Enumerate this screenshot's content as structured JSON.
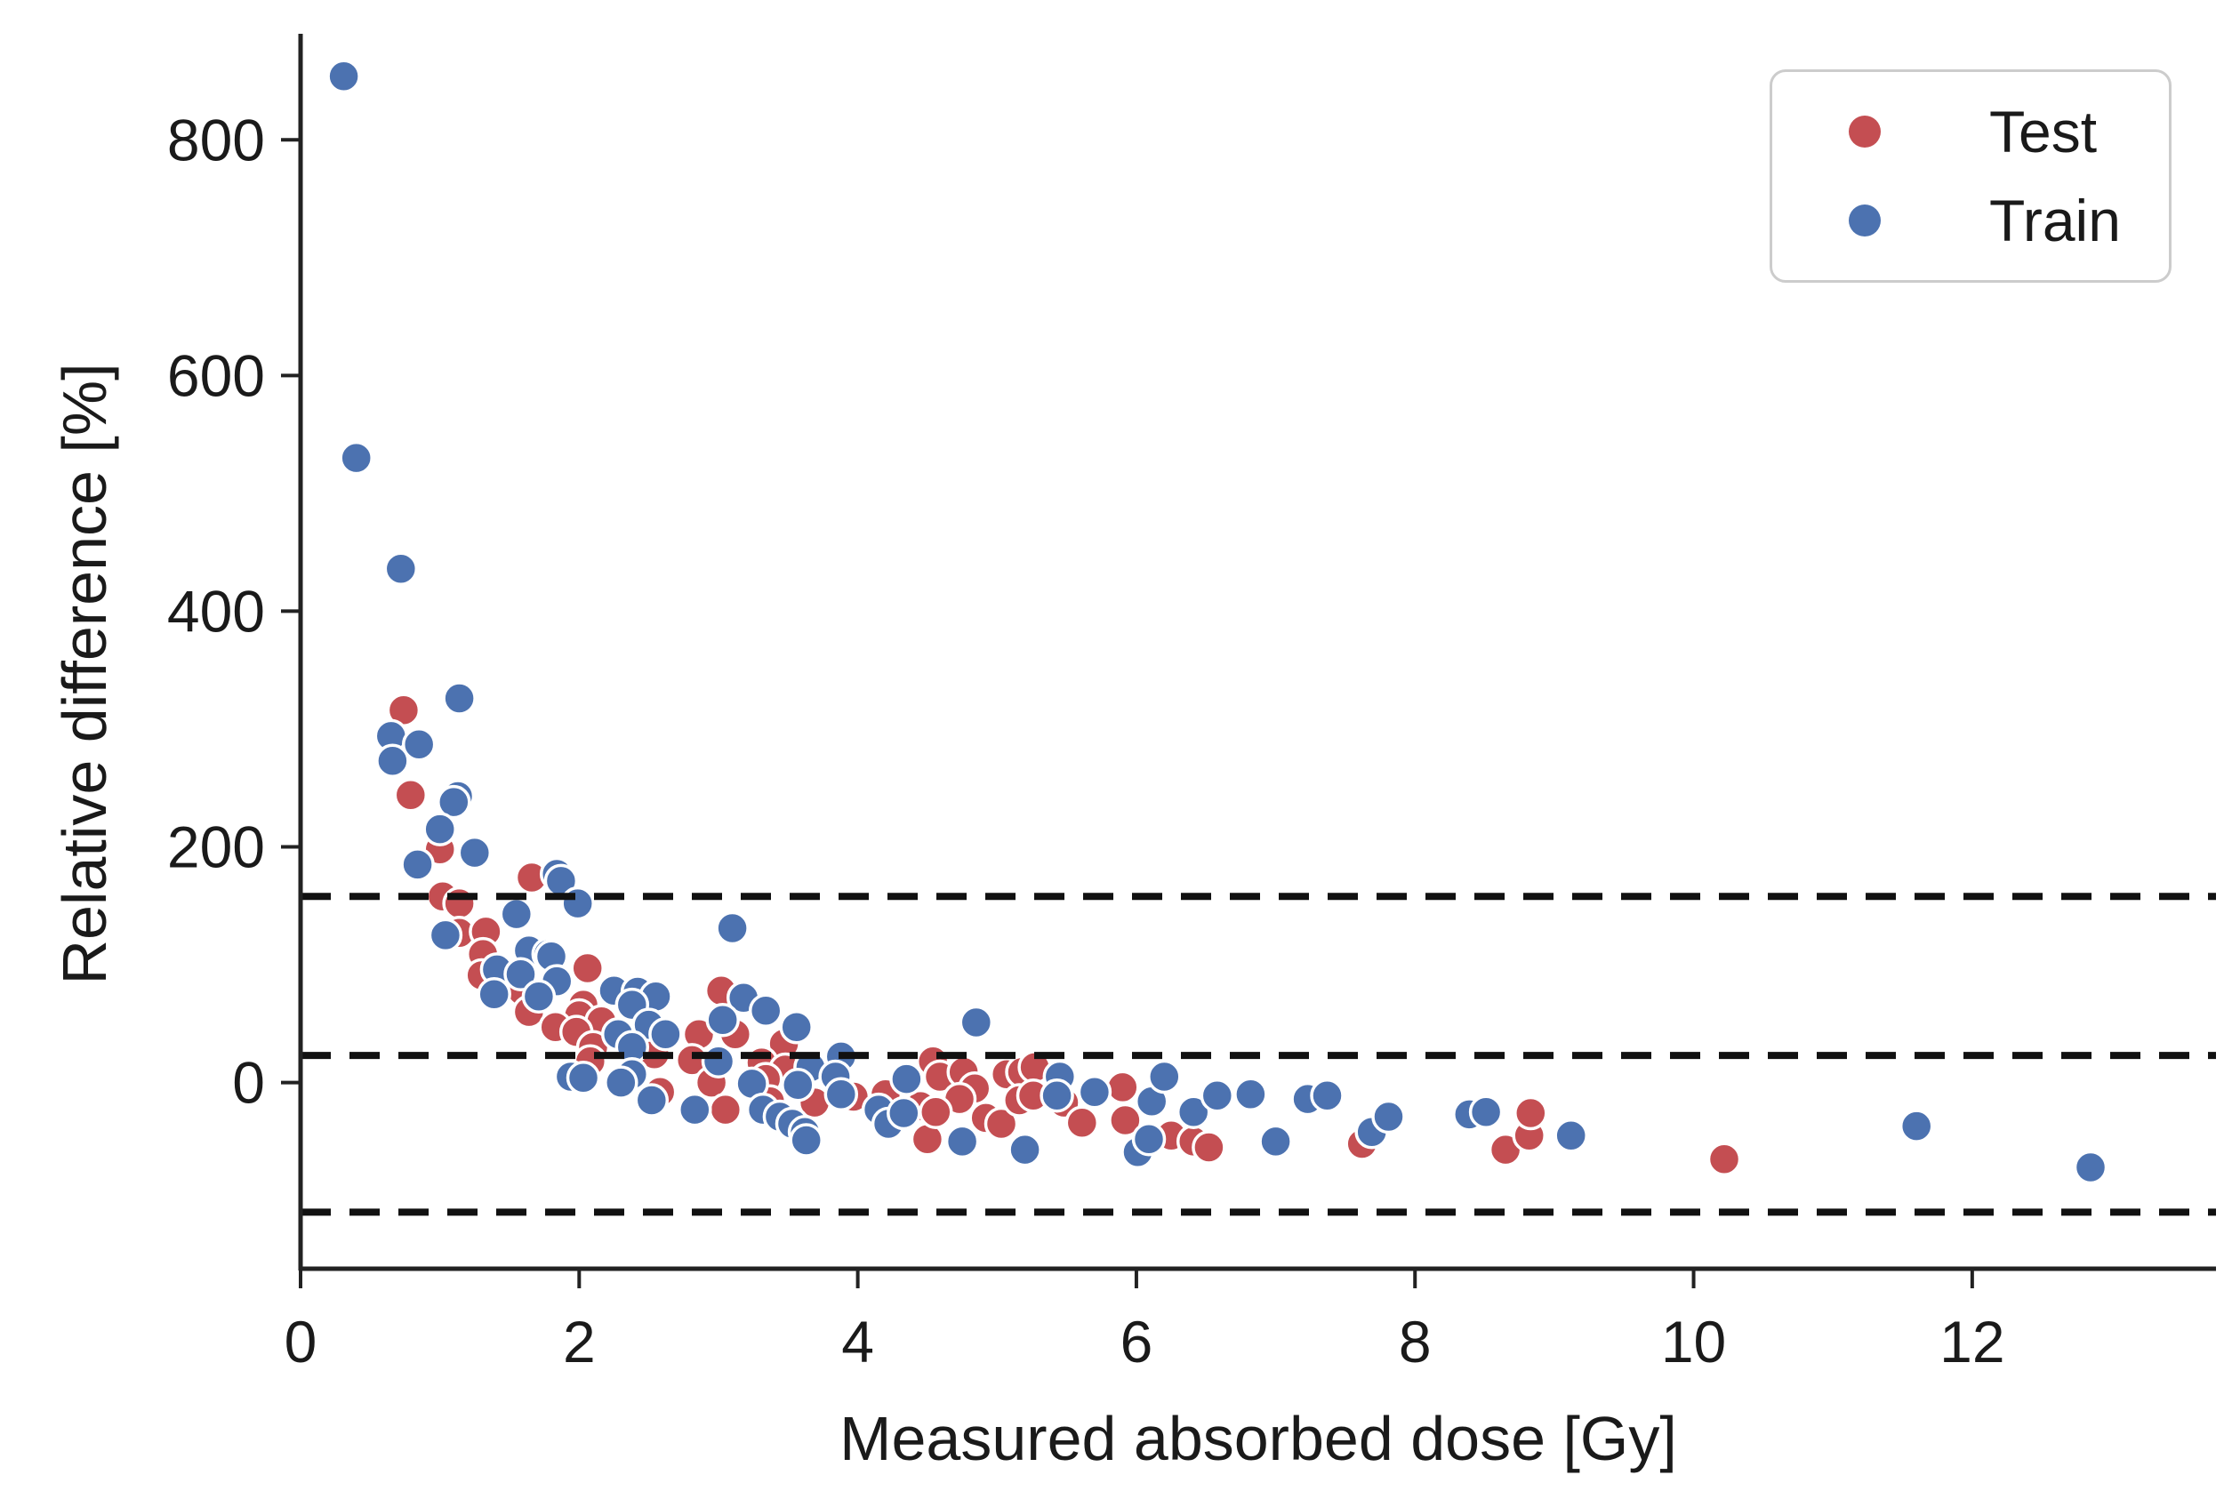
{
  "accent_colors": {
    "test_red": "#C44E52",
    "train_blue": "#4C72B0",
    "line_black": "#111111",
    "axis_color": "#222222",
    "text_color": "#1a1a1a",
    "legend_border": "#cccccc"
  },
  "legend": {
    "entries": [
      {
        "label": "Test",
        "color": "#C44E52"
      },
      {
        "label": "Train",
        "color": "#4C72B0"
      }
    ]
  },
  "chart_data": {
    "type": "scatter",
    "title": "",
    "xlabel": "Measured absorbed dose [Gy]",
    "ylabel": "Relative difference [%]",
    "xlim": [
      0,
      13.75
    ],
    "ylim": [
      -158,
      890
    ],
    "x_ticks": [
      0,
      2,
      4,
      6,
      8,
      10,
      12
    ],
    "y_ticks": [
      0,
      200,
      400,
      600,
      800
    ],
    "grid": false,
    "legend_position": "upper right",
    "reference_lines": {
      "style": "dashed",
      "color": "#111111",
      "values": [
        158,
        23,
        -110
      ]
    },
    "series": [
      {
        "name": "Test",
        "color": "#C44E52",
        "points": [
          [
            0.74,
            316
          ],
          [
            0.79,
            244
          ],
          [
            1.0,
            198
          ],
          [
            1.02,
            158
          ],
          [
            1.14,
            152
          ],
          [
            1.66,
            174
          ],
          [
            1.14,
            127
          ],
          [
            1.33,
            128
          ],
          [
            1.31,
            109
          ],
          [
            1.3,
            91
          ],
          [
            2.06,
            97
          ],
          [
            1.59,
            78
          ],
          [
            2.03,
            66
          ],
          [
            1.64,
            60
          ],
          [
            2.0,
            57
          ],
          [
            2.16,
            52
          ],
          [
            1.83,
            47
          ],
          [
            1.98,
            43
          ],
          [
            2.1,
            30
          ],
          [
            2.08,
            18
          ],
          [
            3.02,
            78
          ],
          [
            2.86,
            41
          ],
          [
            3.12,
            41
          ],
          [
            3.47,
            33
          ],
          [
            2.54,
            24
          ],
          [
            2.81,
            19
          ],
          [
            3.31,
            17
          ],
          [
            3.48,
            11
          ],
          [
            2.58,
            -8
          ],
          [
            2.95,
            0
          ],
          [
            3.34,
            3
          ],
          [
            3.37,
            -16
          ],
          [
            3.69,
            -17
          ],
          [
            3.05,
            -23
          ],
          [
            3.97,
            -12
          ],
          [
            4.2,
            -10
          ],
          [
            4.45,
            -20
          ],
          [
            4.5,
            -48
          ],
          [
            4.54,
            18
          ],
          [
            4.59,
            5
          ],
          [
            4.76,
            9
          ],
          [
            4.84,
            -5
          ],
          [
            5.07,
            7
          ],
          [
            5.18,
            9
          ],
          [
            5.27,
            13
          ],
          [
            4.73,
            -14
          ],
          [
            4.92,
            -30
          ],
          [
            5.03,
            -35
          ],
          [
            5.16,
            -15
          ],
          [
            5.26,
            -11
          ],
          [
            5.48,
            -17
          ],
          [
            5.61,
            -34
          ],
          [
            5.9,
            -4
          ],
          [
            5.92,
            -32
          ],
          [
            6.25,
            -45
          ],
          [
            6.41,
            -50
          ],
          [
            6.52,
            -55
          ],
          [
            4.56,
            -25
          ],
          [
            7.62,
            -52
          ],
          [
            8.65,
            -57
          ],
          [
            8.82,
            -45
          ],
          [
            8.83,
            -26
          ],
          [
            10.22,
            -65
          ]
        ]
      },
      {
        "name": "Train",
        "color": "#4C72B0",
        "points": [
          [
            0.31,
            854
          ],
          [
            0.4,
            530
          ],
          [
            0.72,
            436
          ],
          [
            1.14,
            326
          ],
          [
            0.65,
            294
          ],
          [
            0.85,
            287
          ],
          [
            0.66,
            273
          ],
          [
            1.13,
            243
          ],
          [
            1.1,
            238
          ],
          [
            1.0,
            215
          ],
          [
            1.25,
            195
          ],
          [
            0.84,
            185
          ],
          [
            1.84,
            177
          ],
          [
            1.87,
            171
          ],
          [
            1.99,
            152
          ],
          [
            1.55,
            143
          ],
          [
            1.04,
            125
          ],
          [
            1.64,
            112
          ],
          [
            1.78,
            109
          ],
          [
            1.8,
            107
          ],
          [
            1.41,
            96
          ],
          [
            1.58,
            92
          ],
          [
            1.84,
            86
          ],
          [
            2.25,
            78
          ],
          [
            1.39,
            75
          ],
          [
            1.71,
            73
          ],
          [
            2.42,
            77
          ],
          [
            2.55,
            73
          ],
          [
            2.38,
            66
          ],
          [
            3.18,
            72
          ],
          [
            3.34,
            61
          ],
          [
            3.56,
            47
          ],
          [
            2.5,
            49
          ],
          [
            3.03,
            53
          ],
          [
            2.62,
            41
          ],
          [
            2.28,
            41
          ],
          [
            3.1,
            131
          ],
          [
            4.85,
            51
          ],
          [
            2.38,
            30
          ],
          [
            3.0,
            18
          ],
          [
            3.66,
            13
          ],
          [
            3.88,
            22
          ],
          [
            2.38,
            7
          ],
          [
            1.94,
            5
          ],
          [
            2.03,
            4
          ],
          [
            2.3,
            0
          ],
          [
            3.24,
            -1
          ],
          [
            3.84,
            5
          ],
          [
            3.57,
            -2
          ],
          [
            3.88,
            -10
          ],
          [
            2.52,
            -15
          ],
          [
            2.83,
            -23
          ],
          [
            3.32,
            -23
          ],
          [
            4.15,
            -23
          ],
          [
            4.35,
            3
          ],
          [
            3.44,
            -29
          ],
          [
            3.53,
            -35
          ],
          [
            3.62,
            -42
          ],
          [
            3.63,
            -49
          ],
          [
            4.22,
            -35
          ],
          [
            4.33,
            -26
          ],
          [
            4.75,
            -50
          ],
          [
            5.2,
            -57
          ],
          [
            5.45,
            5
          ],
          [
            5.43,
            -11
          ],
          [
            5.7,
            -8
          ],
          [
            6.01,
            -59
          ],
          [
            6.09,
            -48
          ],
          [
            6.11,
            -16
          ],
          [
            6.2,
            5
          ],
          [
            6.41,
            -25
          ],
          [
            6.58,
            -11
          ],
          [
            6.82,
            -10
          ],
          [
            7.0,
            -50
          ],
          [
            7.23,
            -14
          ],
          [
            7.37,
            -11
          ],
          [
            7.69,
            -42
          ],
          [
            7.81,
            -29
          ],
          [
            8.39,
            -27
          ],
          [
            8.51,
            -25
          ],
          [
            9.12,
            -45
          ],
          [
            11.6,
            -37
          ],
          [
            12.85,
            -72
          ]
        ]
      }
    ]
  }
}
